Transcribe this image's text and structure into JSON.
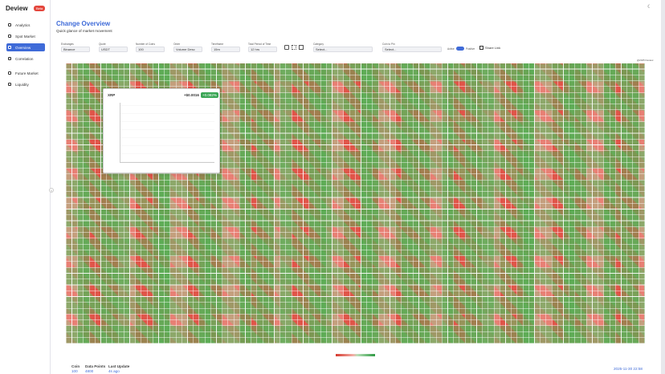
{
  "header": {
    "brand": "Deview",
    "badge": "Beta"
  },
  "sidebar": {
    "items": [
      "Analytics",
      "Spot Market",
      "Overview",
      "Correlation",
      "Future Market",
      "Liquidity"
    ]
  },
  "page": {
    "title": "Change Overview",
    "subtitle": "Quick glance of market movement"
  },
  "filters": [
    {
      "label": "Exchanges",
      "value": "Binance"
    },
    {
      "label": "Quote",
      "value": "USDT"
    },
    {
      "label": "Number of Coins",
      "value": "100"
    },
    {
      "label": "Order",
      "value": "Volume Desc"
    },
    {
      "label": "Timeframe",
      "value": "15m"
    },
    {
      "label": "Total Period of Time",
      "value": "12 hrs"
    },
    {
      "label": "Category",
      "value": "Select..."
    },
    {
      "label": "Coin to Pin",
      "value": "Select..."
    }
  ],
  "toggle": {
    "label": "Active",
    "state": "Positive"
  },
  "share": "Share Link",
  "copyright": "@2025 Deview",
  "popup": {
    "symbol": "XRP",
    "change": "+$0.0016",
    "percent": "+0.082%"
  },
  "stats": [
    {
      "label": "Coin",
      "value": 100
    },
    {
      "label": "Data Points",
      "value": 4800
    },
    {
      "label": "Last Update",
      "value": "4s ago"
    }
  ],
  "timestamp": "2025-11-30 22:58"
}
